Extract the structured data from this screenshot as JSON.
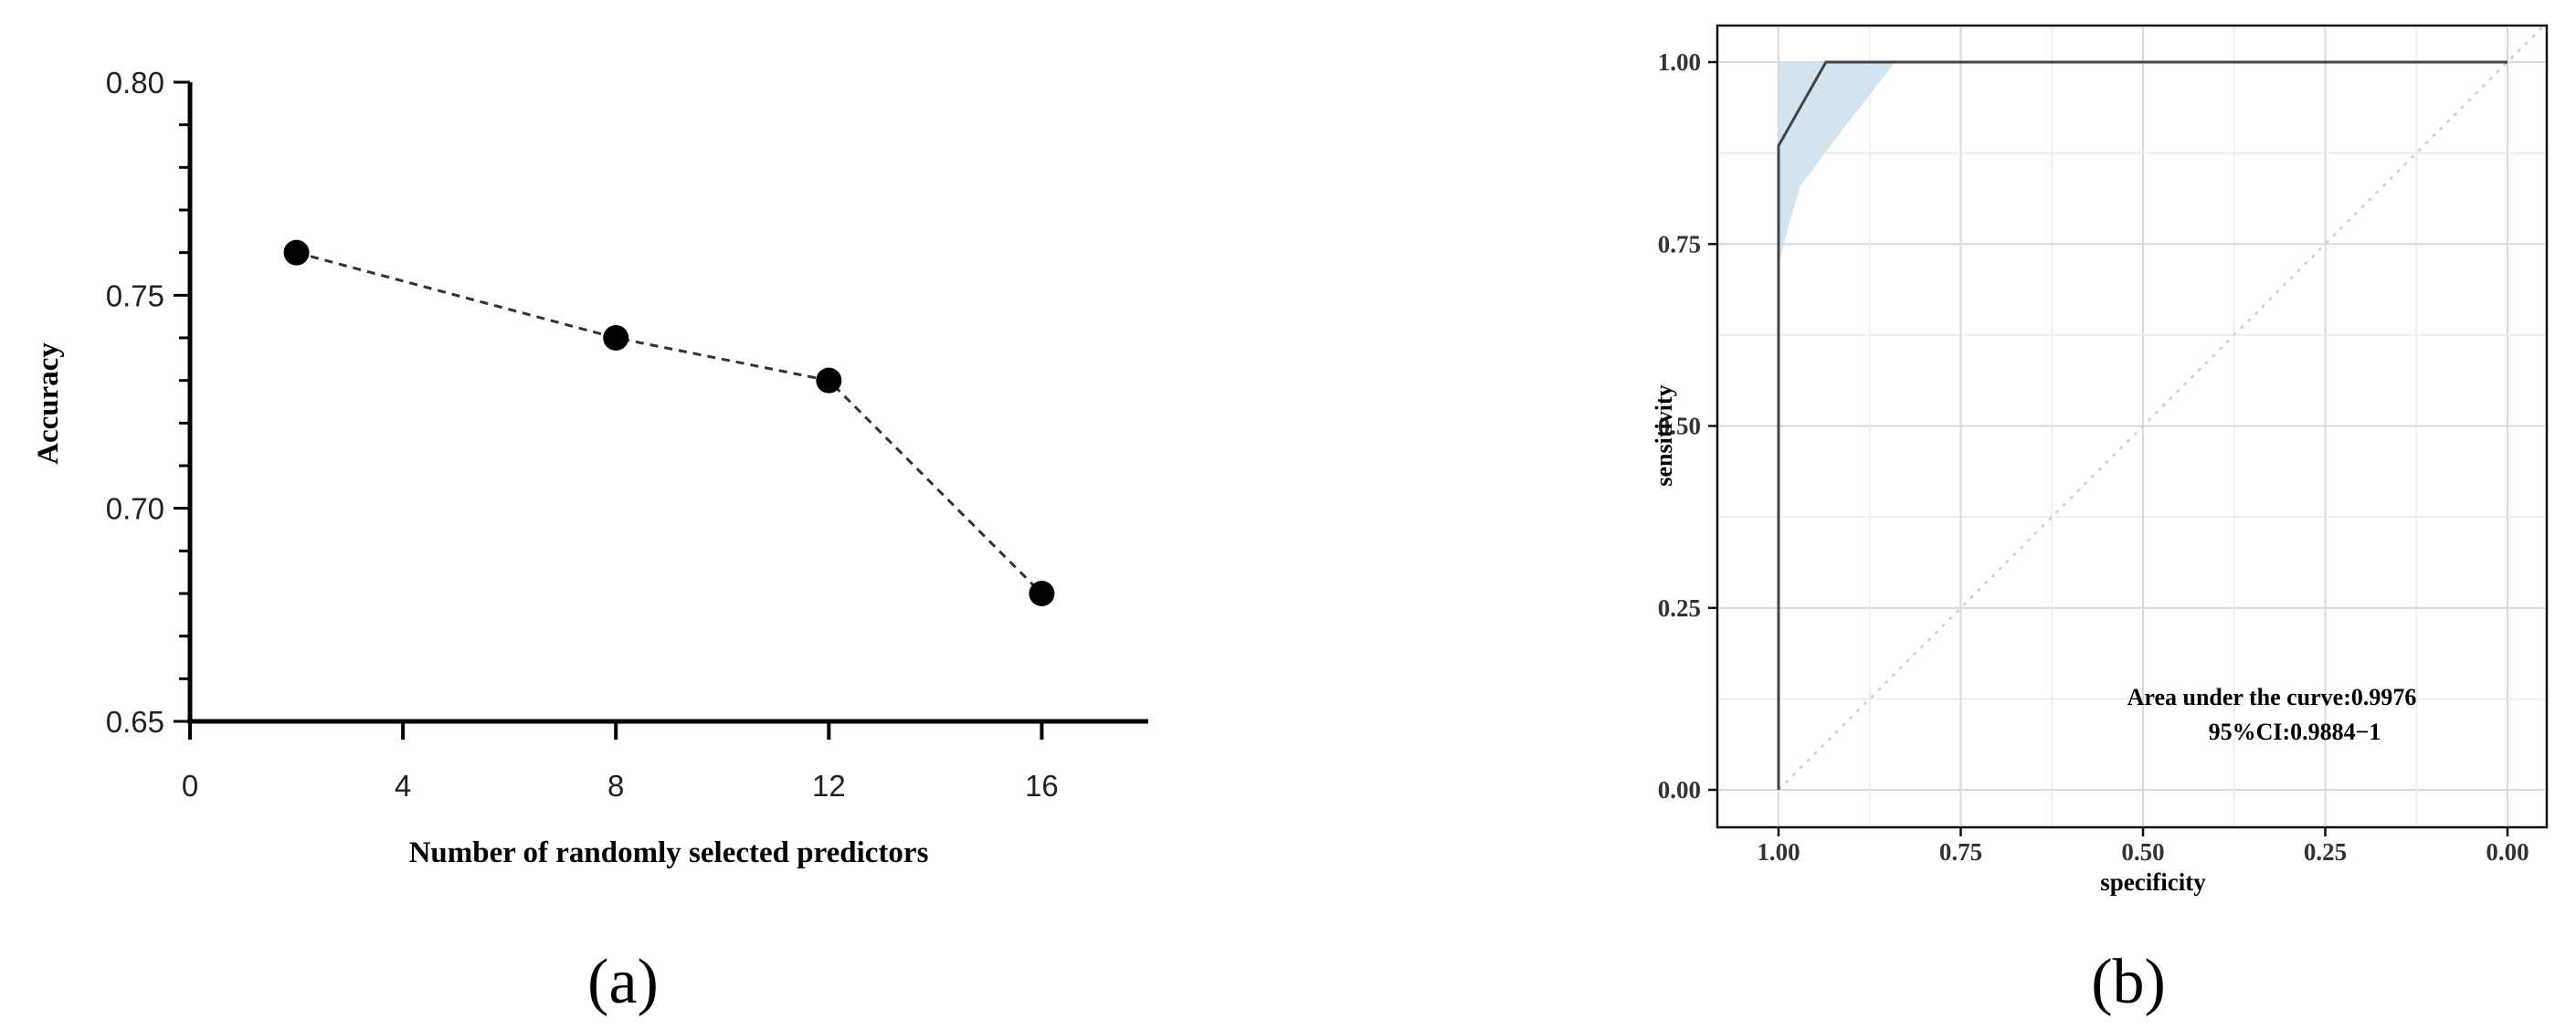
{
  "panel_labels": {
    "a": "(a)",
    "b": "(b)"
  },
  "chart_data": [
    {
      "type": "line",
      "xlabel": "Number of randomly selected predictors",
      "ylabel": "Accuracy",
      "xlim": [
        0,
        18
      ],
      "ylim": [
        0.65,
        0.8
      ],
      "xticks": [
        0,
        4,
        8,
        12,
        16
      ],
      "xtick_labels": [
        "0",
        "4",
        "8",
        "12",
        "16"
      ],
      "yticks": [
        0.65,
        0.7,
        0.75,
        0.8
      ],
      "ytick_labels": [
        "0.65",
        "0.70",
        "0.75",
        "0.80"
      ],
      "line_style": "dashed",
      "marker": "filled-circle",
      "grid": false,
      "series": [
        {
          "x": [
            2,
            8,
            12,
            16
          ],
          "y": [
            0.76,
            0.74,
            0.73,
            0.68
          ]
        }
      ]
    },
    {
      "type": "line",
      "xlabel": "specificity",
      "ylabel": "sensitivity",
      "x_reversed": true,
      "xlim": [
        1.0,
        0.0
      ],
      "ylim": [
        0.0,
        1.0
      ],
      "xticks": [
        1.0,
        0.75,
        0.5,
        0.25,
        0.0
      ],
      "xtick_labels": [
        "1.00",
        "0.75",
        "0.50",
        "0.25",
        "0.00"
      ],
      "yticks": [
        0.0,
        0.25,
        0.5,
        0.75,
        1.0
      ],
      "ytick_labels": [
        "0.00",
        "0.25",
        "0.50",
        "0.75",
        "1.00"
      ],
      "grid": true,
      "annotation": [
        "Area under the curve:0.9976",
        "95%CI:0.9884−1"
      ],
      "series": [
        {
          "specificity": [
            1.0,
            1.0,
            1.0,
            0.935,
            0.0
          ],
          "sensitivity": [
            0.0,
            0.72,
            0.885,
            1.0,
            1.0
          ]
        }
      ],
      "confidence_band": {
        "color": "#cfe0ee",
        "specificity": [
          1.0,
          1.0,
          0.93,
          0.0,
          0.0,
          0.84,
          0.875,
          0.91,
          0.94,
          0.97,
          0.985,
          1.0
        ],
        "sensitivity": [
          0.72,
          1.0,
          1.0,
          1.0,
          1.0,
          1.0,
          0.955,
          0.91,
          0.87,
          0.83,
          0.78,
          0.72
        ]
      },
      "reference_line": {
        "from": [
          1.0,
          0.0
        ],
        "to": [
          0.0,
          1.0
        ],
        "style": "dotted"
      }
    }
  ]
}
